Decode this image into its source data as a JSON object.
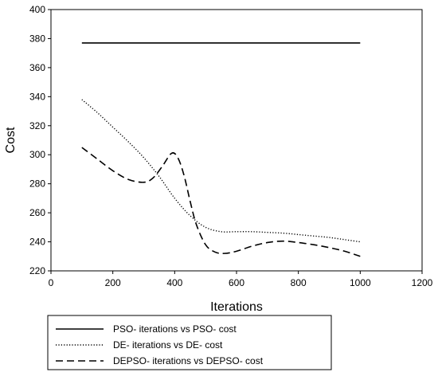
{
  "chart_data": {
    "type": "line",
    "xlabel": "Iterations",
    "ylabel": "Cost",
    "xlim": [
      0,
      1200
    ],
    "ylim": [
      220,
      400
    ],
    "x_ticks": [
      0,
      200,
      400,
      600,
      800,
      1000,
      1200
    ],
    "y_ticks": [
      220,
      240,
      260,
      280,
      300,
      320,
      340,
      360,
      380,
      400
    ],
    "grid": false,
    "legend_position": "bottom",
    "series": [
      {
        "name": "PSO- iterations vs PSO- cost",
        "line_style": "solid",
        "color": "#000000",
        "x": [
          100,
          1000
        ],
        "y": [
          377,
          377
        ]
      },
      {
        "name": "DE- iterations vs DE- cost",
        "line_style": "dotted",
        "color": "#000000",
        "x": [
          100,
          150,
          200,
          250,
          300,
          350,
          400,
          450,
          500,
          550,
          600,
          650,
          700,
          750,
          800,
          850,
          900,
          950,
          1000
        ],
        "y": [
          338,
          329,
          319,
          309,
          298,
          285,
          270,
          258,
          250,
          247,
          247,
          247,
          246.5,
          246,
          245,
          244,
          243,
          241.5,
          240
        ]
      },
      {
        "name": "DEPSO- iterations vs DEPSO- cost",
        "line_style": "dashed",
        "color": "#000000",
        "x": [
          100,
          150,
          200,
          250,
          300,
          330,
          360,
          390,
          410,
          430,
          450,
          470,
          500,
          530,
          560,
          600,
          650,
          700,
          750,
          800,
          850,
          900,
          950,
          1000
        ],
        "y": [
          305,
          297,
          289,
          283,
          281,
          284,
          292,
          301,
          298,
          286,
          268,
          252,
          238,
          233,
          232,
          233.5,
          237,
          239.5,
          240.5,
          239.5,
          238,
          236,
          233.5,
          230
        ]
      }
    ]
  }
}
